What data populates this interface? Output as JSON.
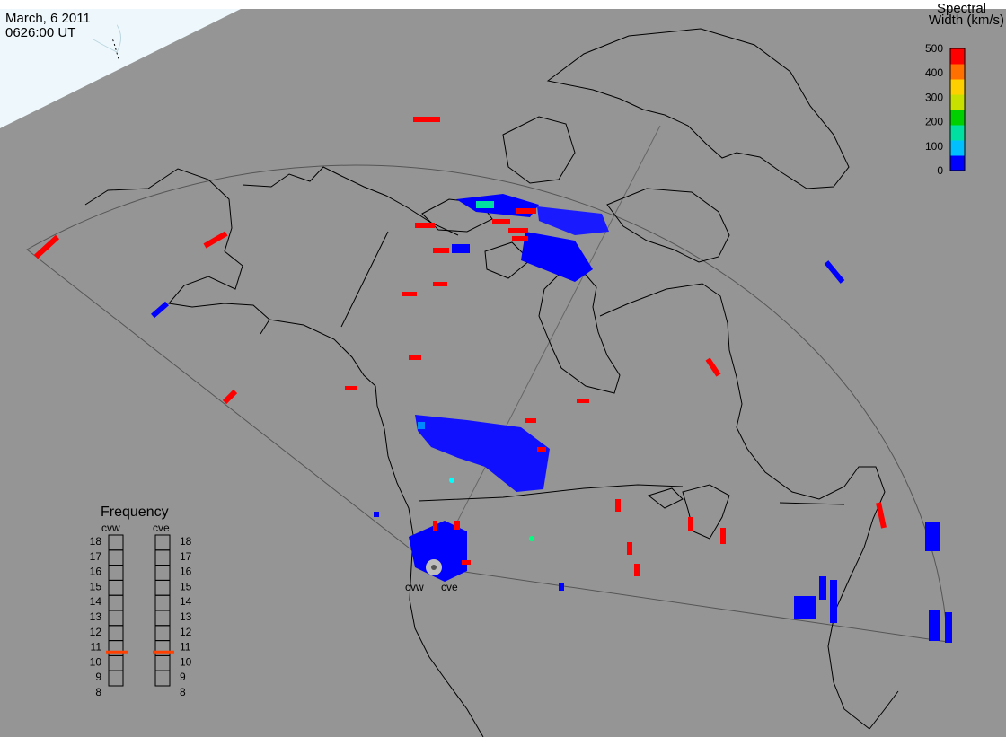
{
  "header": {
    "date": "March, 6 2011",
    "time": "0626:00 UT"
  },
  "colorbar": {
    "title_line1": "Spectral",
    "title_line2": "Width (km/s)",
    "ticks": [
      "500",
      "400",
      "300",
      "200",
      "100",
      "0"
    ],
    "range": [
      0,
      500
    ],
    "colors": [
      "#0000ff",
      "#00bfff",
      "#00e0a0",
      "#00d000",
      "#c8e000",
      "#ffd000",
      "#ff7000",
      "#ff0000"
    ]
  },
  "map": {
    "background_color": "#959595",
    "daylight_color": "#eef8fc",
    "coastline_color": "#000000",
    "radars": [
      {
        "label": "cvw"
      },
      {
        "label": "cve"
      }
    ]
  },
  "frequency_panel": {
    "title": "Frequency",
    "radar_labels": [
      "cvw",
      "cve"
    ],
    "levels": [
      "18",
      "17",
      "16",
      "15",
      "14",
      "13",
      "12",
      "11",
      "10",
      "9",
      "8"
    ],
    "cvw_frequency_mhz": 10.6,
    "cve_frequency_mhz": 10.6,
    "marker_color": "#ff4000"
  }
}
